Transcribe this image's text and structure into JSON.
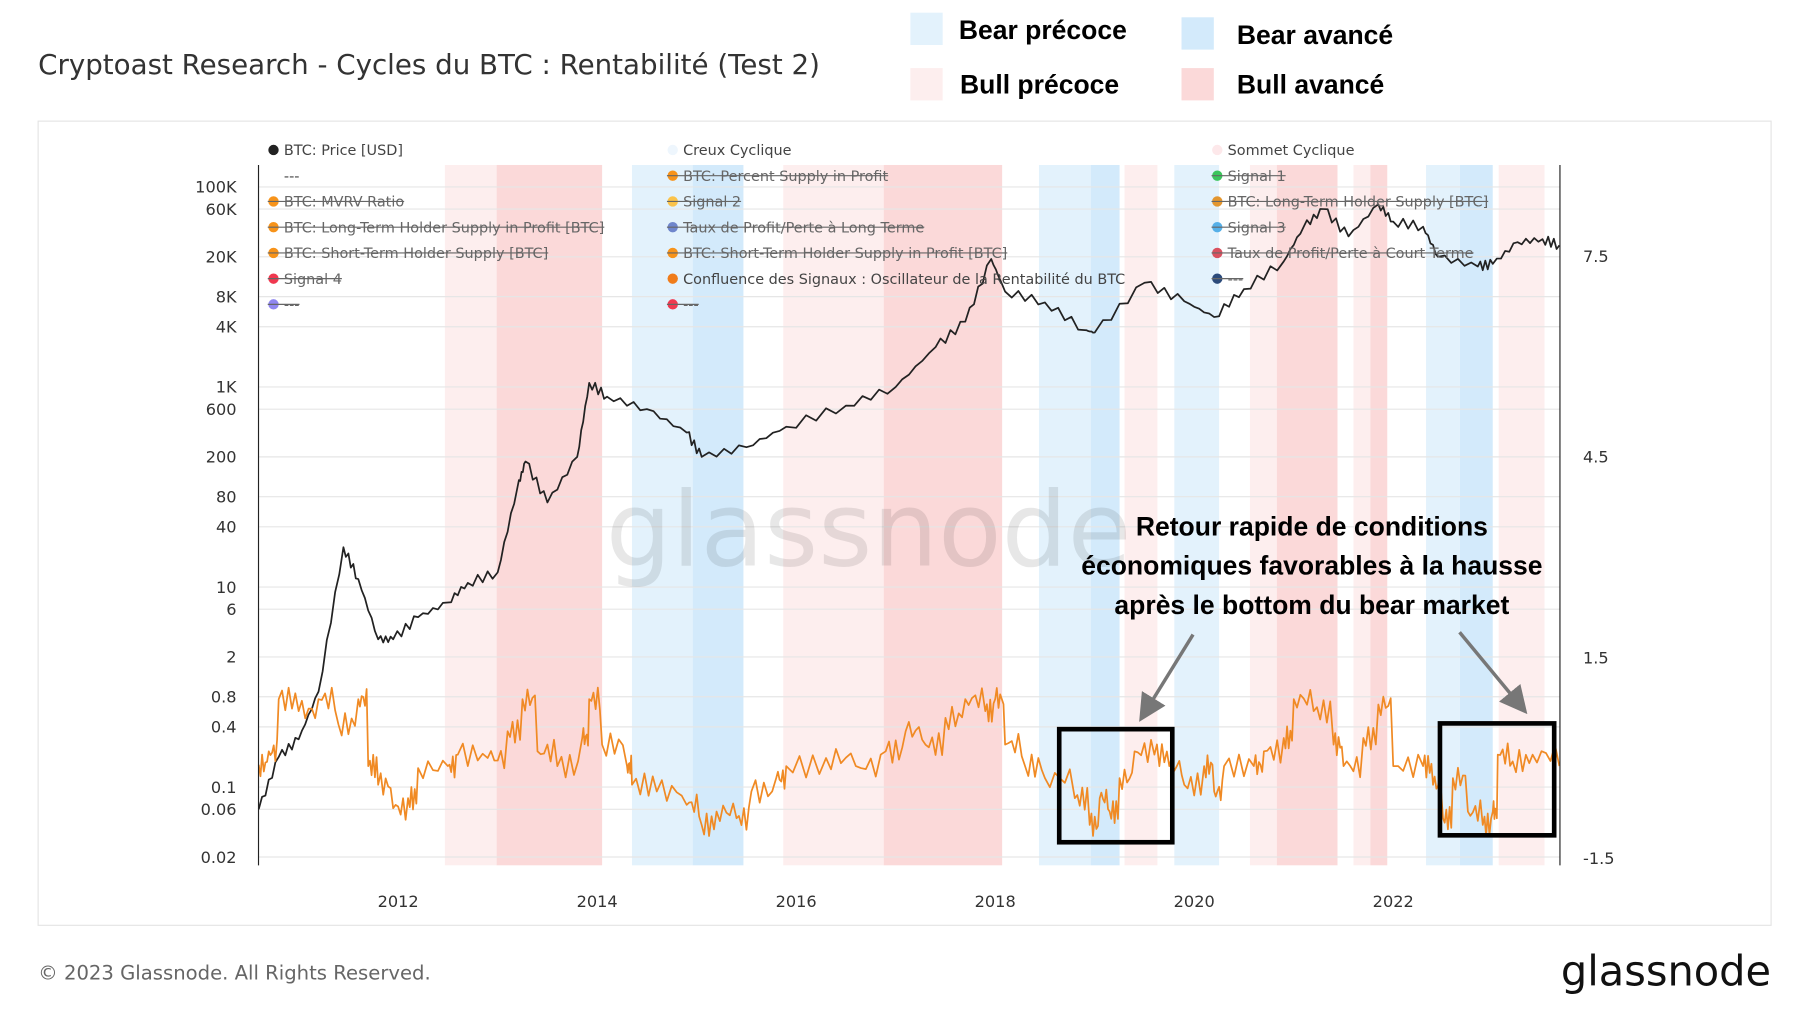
{
  "title": "Cryptoast Research - Cycles du BTC : Rentabilité (Test 2)",
  "phase_legend": [
    {
      "label": "Bear précoce",
      "color": "#e3f2fc"
    },
    {
      "label": "Bear avancé",
      "color": "#d3eafb"
    },
    {
      "label": "Bull précoce",
      "color": "#fdeeee"
    },
    {
      "label": "Bull avancé",
      "color": "#fbd9d9"
    }
  ],
  "series_legend": [
    {
      "label": "BTC: Price [USD]",
      "color": "#222222",
      "disabled": false
    },
    {
      "label": "---",
      "color": "",
      "disabled": false
    },
    {
      "label": "BTC: MVRV Ratio",
      "color": "#f7931a",
      "disabled": true
    },
    {
      "label": "BTC: Long-Term Holder Supply in Profit [BTC]",
      "color": "#f7931a",
      "disabled": true
    },
    {
      "label": "BTC: Short-Term Holder Supply [BTC]",
      "color": "#f7931a",
      "disabled": true
    },
    {
      "label": "Signal 4",
      "color": "#f0384f",
      "disabled": true
    },
    {
      "label": "---",
      "color": "#8f86f0",
      "disabled": true
    },
    {
      "label": "Creux Cyclique",
      "color": "#eef6fd",
      "disabled": false
    },
    {
      "label": "BTC: Percent Supply in Profit",
      "color": "#f7931a",
      "disabled": true
    },
    {
      "label": "Signal 2",
      "color": "#fbc34a",
      "disabled": true
    },
    {
      "label": "Taux de Profit/Perte à Long Terme",
      "color": "#6f86cc",
      "disabled": true
    },
    {
      "label": "BTC: Short-Term Holder Supply in Profit [BTC]",
      "color": "#f7931a",
      "disabled": true
    },
    {
      "label": "Confluence des Signaux : Oscillateur de la Rentabilité du BTC",
      "color": "#f07c1a",
      "disabled": false
    },
    {
      "label": "---",
      "color": "#f0384f",
      "disabled": true
    },
    {
      "label": "Sommet Cyclique",
      "color": "#fde8ea",
      "disabled": false
    },
    {
      "label": "Signal 1",
      "color": "#3cc55c",
      "disabled": true
    },
    {
      "label": "BTC: Long-Term Holder Supply [BTC]",
      "color": "#e3962f",
      "disabled": true
    },
    {
      "label": "Signal 3",
      "color": "#56b0e8",
      "disabled": true
    },
    {
      "label": "Taux de Profit/Perte à Court Terme",
      "color": "#d9505f",
      "disabled": true
    },
    {
      "label": "---",
      "color": "#2b4a7a",
      "disabled": true
    }
  ],
  "annotation": {
    "lines": [
      "Retour rapide de conditions",
      "économiques favorables à la hausse",
      "après le bottom du bear market"
    ]
  },
  "watermark": "glassnode",
  "footer": {
    "copyright": "© 2023 Glassnode. All Rights Reserved.",
    "logo": "glassnode"
  },
  "chart_data": {
    "type": "line",
    "title": "Cryptoast Research - Cycles du BTC : Rentabilité (Test 2)",
    "x_ticks": [
      "2012",
      "2014",
      "2016",
      "2018",
      "2020",
      "2022"
    ],
    "xlim": [
      2010.6,
      2023.67
    ],
    "y_left": {
      "scale": "log",
      "ticks": [
        "100K",
        "60K",
        "20K",
        "8K",
        "4K",
        "1K",
        "600",
        "200",
        "80",
        "40",
        "10",
        "6",
        "2",
        "0.8",
        "0.4",
        "0.1",
        "0.06",
        "0.02"
      ],
      "tick_values": [
        100000,
        60000,
        20000,
        8000,
        4000,
        1000,
        600,
        200,
        80,
        40,
        10,
        6,
        2,
        0.8,
        0.4,
        0.1,
        0.06,
        0.02
      ]
    },
    "y_right": {
      "scale": "linear",
      "ticks": [
        "7.5",
        "4.5",
        "1.5",
        "-1.5"
      ],
      "tick_values": [
        7.5,
        4.5,
        1.5,
        -1.5
      ]
    },
    "grid": true,
    "phases": [
      {
        "type": "Bull précoce",
        "from": 2012.47,
        "to": 2012.99
      },
      {
        "type": "Bull avancé",
        "from": 2012.99,
        "to": 2014.05
      },
      {
        "type": "Bear précoce",
        "from": 2014.35,
        "to": 2014.96
      },
      {
        "type": "Bear avancé",
        "from": 2014.96,
        "to": 2015.47
      },
      {
        "type": "Bull précoce",
        "from": 2015.87,
        "to": 2016.88
      },
      {
        "type": "Bull avancé",
        "from": 2016.88,
        "to": 2018.07
      },
      {
        "type": "Bear précoce",
        "from": 2018.44,
        "to": 2018.96
      },
      {
        "type": "Bear avancé",
        "from": 2018.96,
        "to": 2019.25
      },
      {
        "type": "Bull précoce",
        "from": 2019.3,
        "to": 2019.63
      },
      {
        "type": "Bear précoce",
        "from": 2019.8,
        "to": 2020.25
      },
      {
        "type": "Bull précoce",
        "from": 2020.56,
        "to": 2020.83
      },
      {
        "type": "Bull avancé",
        "from": 2020.83,
        "to": 2021.44
      },
      {
        "type": "Bull précoce",
        "from": 2021.6,
        "to": 2021.77
      },
      {
        "type": "Bull avancé",
        "from": 2021.77,
        "to": 2021.94
      },
      {
        "type": "Bear précoce",
        "from": 2022.33,
        "to": 2022.67
      },
      {
        "type": "Bear avancé",
        "from": 2022.67,
        "to": 2023.0
      },
      {
        "type": "Bull précoce",
        "from": 2023.06,
        "to": 2023.52
      }
    ],
    "series": [
      {
        "name": "BTC: Price [USD]",
        "axis": "left",
        "color": "#222222",
        "x": [
          2010.6,
          2010.8,
          2011.0,
          2011.2,
          2011.45,
          2011.6,
          2011.8,
          2011.95,
          2012.2,
          2012.5,
          2012.7,
          2013.0,
          2013.2,
          2013.28,
          2013.5,
          2013.8,
          2013.92,
          2014.1,
          2014.5,
          2014.9,
          2015.05,
          2015.5,
          2015.9,
          2016.5,
          2017.0,
          2017.4,
          2017.7,
          2017.96,
          2018.1,
          2018.5,
          2018.9,
          2019.0,
          2019.5,
          2019.9,
          2020.2,
          2020.5,
          2020.9,
          2021.1,
          2021.3,
          2021.55,
          2021.85,
          2022.0,
          2022.3,
          2022.45,
          2022.85,
          2023.0,
          2023.25,
          2023.5,
          2023.67
        ],
        "y": [
          0.06,
          0.2,
          0.3,
          0.9,
          25,
          12,
          3,
          3,
          5,
          7,
          11,
          14,
          100,
          180,
          70,
          200,
          1100,
          800,
          600,
          350,
          200,
          250,
          400,
          650,
          1000,
          2500,
          4500,
          19000,
          9000,
          7000,
          3700,
          3500,
          11000,
          7200,
          5000,
          9500,
          18000,
          40000,
          60000,
          32000,
          67000,
          45000,
          40000,
          20000,
          16000,
          17000,
          28000,
          30000,
          26000
        ]
      },
      {
        "name": "Confluence des Signaux : Oscillateur de la Rentabilité du BTC",
        "axis": "right",
        "color": "#f08a24",
        "x": [
          2010.6,
          2010.7,
          2010.8,
          2011.0,
          2011.2,
          2011.4,
          2011.6,
          2011.7,
          2011.8,
          2011.95,
          2012.1,
          2012.2,
          2012.5,
          2012.6,
          2012.9,
          2013.1,
          2013.25,
          2013.4,
          2013.6,
          2013.85,
          2013.92,
          2014.05,
          2014.3,
          2014.35,
          2014.6,
          2014.9,
          2015.05,
          2015.2,
          2015.4,
          2015.55,
          2015.8,
          2015.9,
          2016.3,
          2016.6,
          2016.9,
          2017.1,
          2017.3,
          2017.5,
          2017.7,
          2017.9,
          2018.0,
          2018.1,
          2018.3,
          2018.5,
          2018.8,
          2018.95,
          2019.05,
          2019.15,
          2019.25,
          2019.4,
          2019.6,
          2019.75,
          2019.9,
          2020.1,
          2020.2,
          2020.3,
          2020.6,
          2020.7,
          2020.9,
          2021.0,
          2021.2,
          2021.4,
          2021.5,
          2021.7,
          2021.85,
          2022.0,
          2022.3,
          2022.4,
          2022.5,
          2022.6,
          2022.75,
          2022.9,
          2023.0,
          2023.05,
          2023.2,
          2023.4,
          2023.67
        ],
        "y": [
          -0.1,
          0.1,
          0.88,
          0.7,
          0.88,
          0.5,
          0.88,
          -0.12,
          -0.4,
          -0.75,
          -0.6,
          -0.15,
          -0.12,
          0.05,
          0.0,
          0.4,
          0.88,
          0.1,
          -0.12,
          0.3,
          0.88,
          0.2,
          -0.12,
          -0.4,
          -0.5,
          -0.7,
          -1.0,
          -0.8,
          -0.9,
          -0.5,
          -0.3,
          -0.12,
          0.0,
          -0.12,
          0.1,
          0.4,
          0.2,
          0.6,
          0.88,
          0.7,
          0.88,
          0.2,
          -0.12,
          -0.3,
          -0.6,
          -1.0,
          -0.6,
          -0.8,
          -0.3,
          0.1,
          0.05,
          -0.12,
          -0.4,
          -0.12,
          -0.5,
          -0.12,
          -0.12,
          0.1,
          0.3,
          0.88,
          0.7,
          0.2,
          -0.12,
          0.3,
          0.8,
          -0.12,
          -0.12,
          -0.4,
          -0.9,
          -0.3,
          -0.8,
          -1.0,
          -0.8,
          0.05,
          -0.05,
          0.05,
          -0.12
        ]
      }
    ]
  }
}
